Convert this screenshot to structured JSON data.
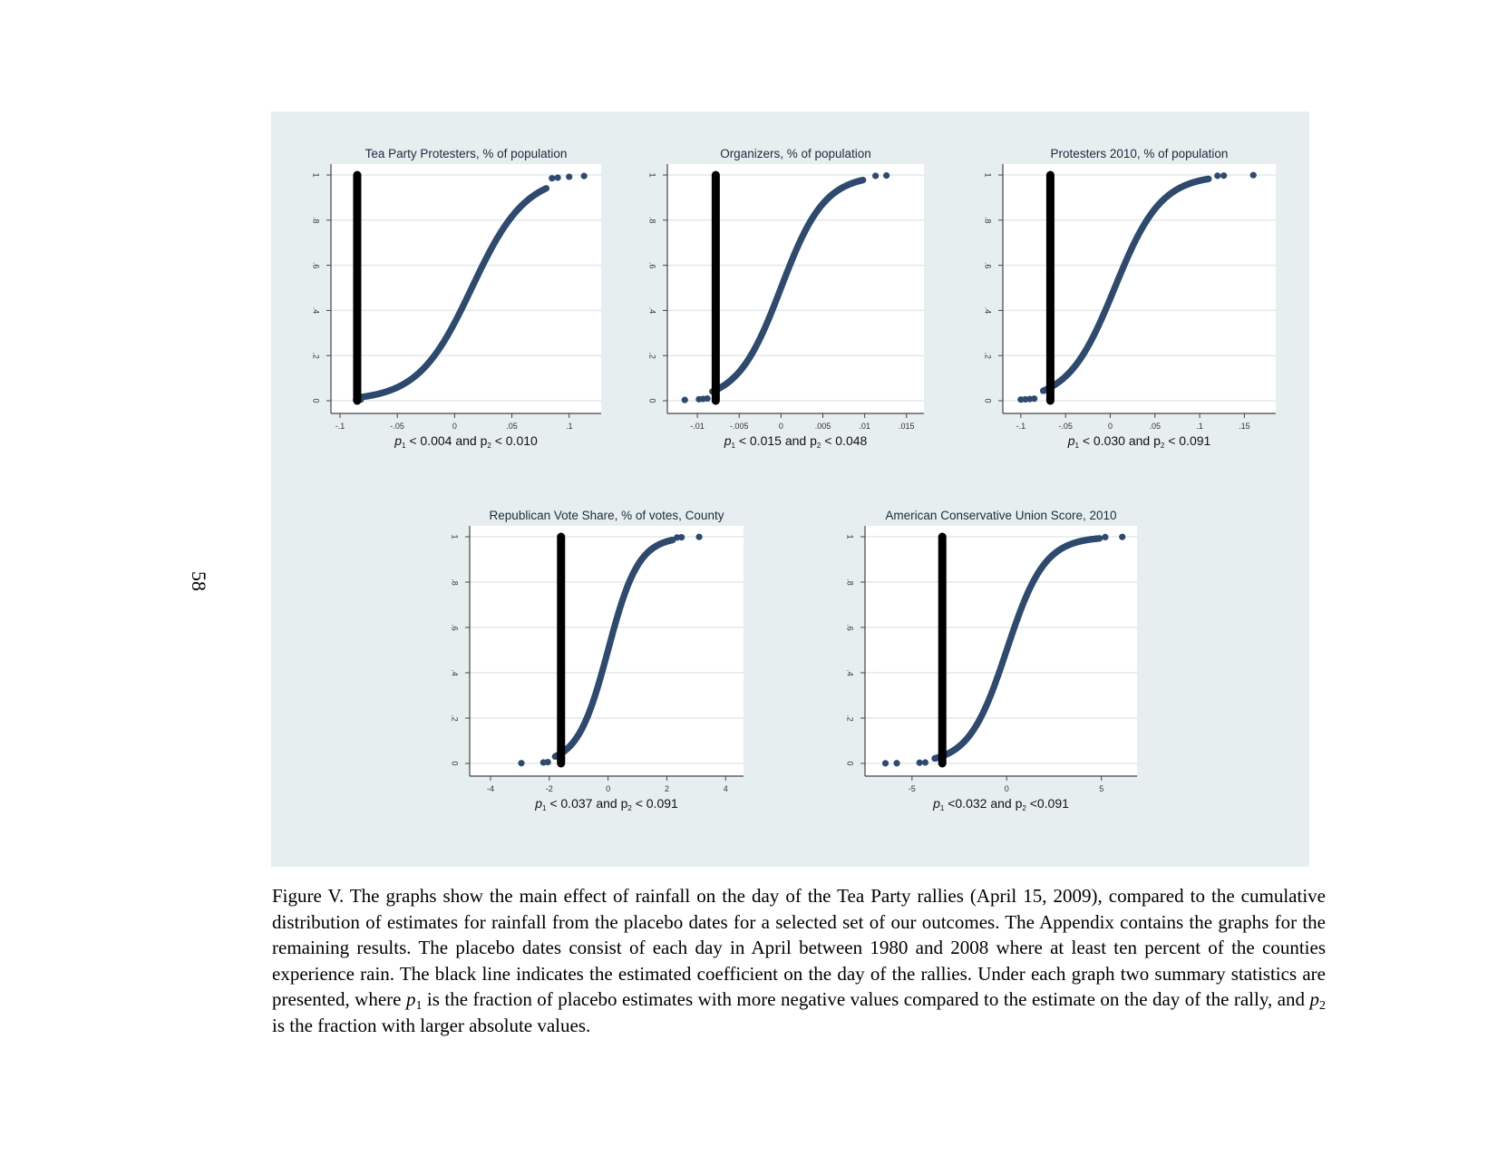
{
  "page": {
    "page_number": "58"
  },
  "caption": {
    "part1": "Figure V. The graphs show the main effect of rainfall on the day of the Tea Party rallies (April 15, 2009), compared to the cumulative distribution of estimates for rainfall from the placebo dates for a selected set of our outcomes.  The Appendix contains the graphs for the remaining results. The placebo dates consist of each day in April between 1980 and 2008 where at least ten percent of the counties experience rain. The black line indicates the estimated coefficient on the day of the rallies. Under each graph two summary statistics are presented, where ",
    "p_letter": "p",
    "sub1": "1",
    "part2": " is the fraction of placebo estimates with more negative values compared to the estimate on the day of the rally, and ",
    "sub2": "2",
    "part3": " is the fraction with larger absolute values."
  },
  "colors": {
    "panel_bg": "#e7eef0",
    "plot_bg": "#ffffff",
    "marker": "#2e4a6e",
    "estimate_line": "#000000",
    "grid": "#e3e8ea",
    "axis": "#444444"
  },
  "chart_data": [
    {
      "type": "scatter",
      "title": "Tea Party Protesters, % of population",
      "note_p1": "< 0.004 and p",
      "note_p2": "< 0.010",
      "xlim": [
        -0.1,
        0.12
      ],
      "ylim": [
        0,
        1
      ],
      "x_ticks": [
        -0.1,
        -0.05,
        0,
        0.05,
        0.1
      ],
      "x_tick_labels": [
        "-.1",
        "-.05",
        "0",
        ".05",
        ".1"
      ],
      "y_ticks": [
        0,
        0.2,
        0.4,
        0.6,
        0.8,
        1
      ],
      "y_tick_labels": [
        "0",
        ".2",
        ".4",
        ".6",
        ".8",
        "1"
      ],
      "estimate": -0.085,
      "cdf_center": 0.015,
      "cdf_scale": 0.0235,
      "cdf_start": -0.085,
      "cdf_end": 0.08,
      "outliers": [
        -0.086,
        -0.082,
        0.085,
        0.09,
        0.1,
        0.113
      ]
    },
    {
      "type": "scatter",
      "title": "Organizers, % of population",
      "note_p1": "< 0.015 and p",
      "note_p2": "< 0.048",
      "xlim": [
        -0.0125,
        0.016
      ],
      "ylim": [
        0,
        1
      ],
      "x_ticks": [
        -0.01,
        -0.005,
        0,
        0.005,
        0.01,
        0.015
      ],
      "x_tick_labels": [
        "-.01",
        "-.005",
        "0",
        ".005",
        ".01",
        ".015"
      ],
      "y_ticks": [
        0,
        0.2,
        0.4,
        0.6,
        0.8,
        1
      ],
      "y_tick_labels": [
        "0",
        ".2",
        ".4",
        ".6",
        ".8",
        "1"
      ],
      "estimate": -0.0078,
      "cdf_center": 0.0,
      "cdf_scale": 0.0026,
      "cdf_start": -0.0082,
      "cdf_end": 0.0098,
      "outliers": [
        -0.0115,
        -0.0098,
        -0.0093,
        -0.0088,
        0.0113,
        0.0126
      ]
    },
    {
      "type": "scatter",
      "title": "Protesters 2010, % of population",
      "note_p1": "< 0.030 and p",
      "note_p2": "< 0.091",
      "xlim": [
        -0.11,
        0.175
      ],
      "ylim": [
        0,
        1
      ],
      "x_ticks": [
        -0.1,
        -0.05,
        0,
        0.05,
        0.1,
        0.15
      ],
      "x_tick_labels": [
        "-.1",
        "-.05",
        "0",
        ".05",
        ".1",
        ".15"
      ],
      "y_ticks": [
        0,
        0.2,
        0.4,
        0.6,
        0.8,
        1
      ],
      "y_tick_labels": [
        "0",
        ".2",
        ".4",
        ".6",
        ".8",
        "1"
      ],
      "estimate": -0.067,
      "cdf_center": 0.005,
      "cdf_scale": 0.026,
      "cdf_start": -0.075,
      "cdf_end": 0.11,
      "outliers": [
        -0.1,
        -0.095,
        -0.09,
        -0.085,
        0.12,
        0.127,
        0.16
      ]
    },
    {
      "type": "scatter",
      "title": "Republican Vote Share, % of votes, County",
      "note_p1": "< 0.037 and p",
      "note_p2": "< 0.091",
      "xlim": [
        -4.4,
        4.3
      ],
      "ylim": [
        0,
        1
      ],
      "x_ticks": [
        -4,
        -2,
        0,
        2,
        4
      ],
      "x_tick_labels": [
        "-4",
        "-2",
        "0",
        "2",
        "4"
      ],
      "y_ticks": [
        0,
        0.2,
        0.4,
        0.6,
        0.8,
        1
      ],
      "y_tick_labels": [
        "0",
        ".2",
        ".4",
        ".6",
        ".8",
        "1"
      ],
      "estimate": -1.6,
      "cdf_center": 0.0,
      "cdf_scale": 0.52,
      "cdf_start": -1.8,
      "cdf_end": 2.2,
      "outliers": [
        -2.95,
        -2.2,
        -2.05,
        2.35,
        2.5,
        3.1
      ]
    },
    {
      "type": "scatter",
      "title": "American Conservative Union Score, 2010",
      "note_p1": "<0.032 and p",
      "note_p2": "<0.091",
      "xlim": [
        -7,
        6.4
      ],
      "ylim": [
        0,
        1
      ],
      "x_ticks": [
        -5,
        0,
        5
      ],
      "x_tick_labels": [
        "-5",
        "0",
        "5"
      ],
      "y_ticks": [
        0,
        0.2,
        0.4,
        0.6,
        0.8,
        1
      ],
      "y_tick_labels": [
        "0",
        ".2",
        ".4",
        ".6",
        ".8",
        "1"
      ],
      "estimate": -3.4,
      "cdf_center": 0.0,
      "cdf_scale": 1.0,
      "cdf_start": -3.8,
      "cdf_end": 4.9,
      "outliers": [
        -6.4,
        -5.8,
        -4.6,
        -4.3,
        5.2,
        6.1
      ]
    }
  ]
}
